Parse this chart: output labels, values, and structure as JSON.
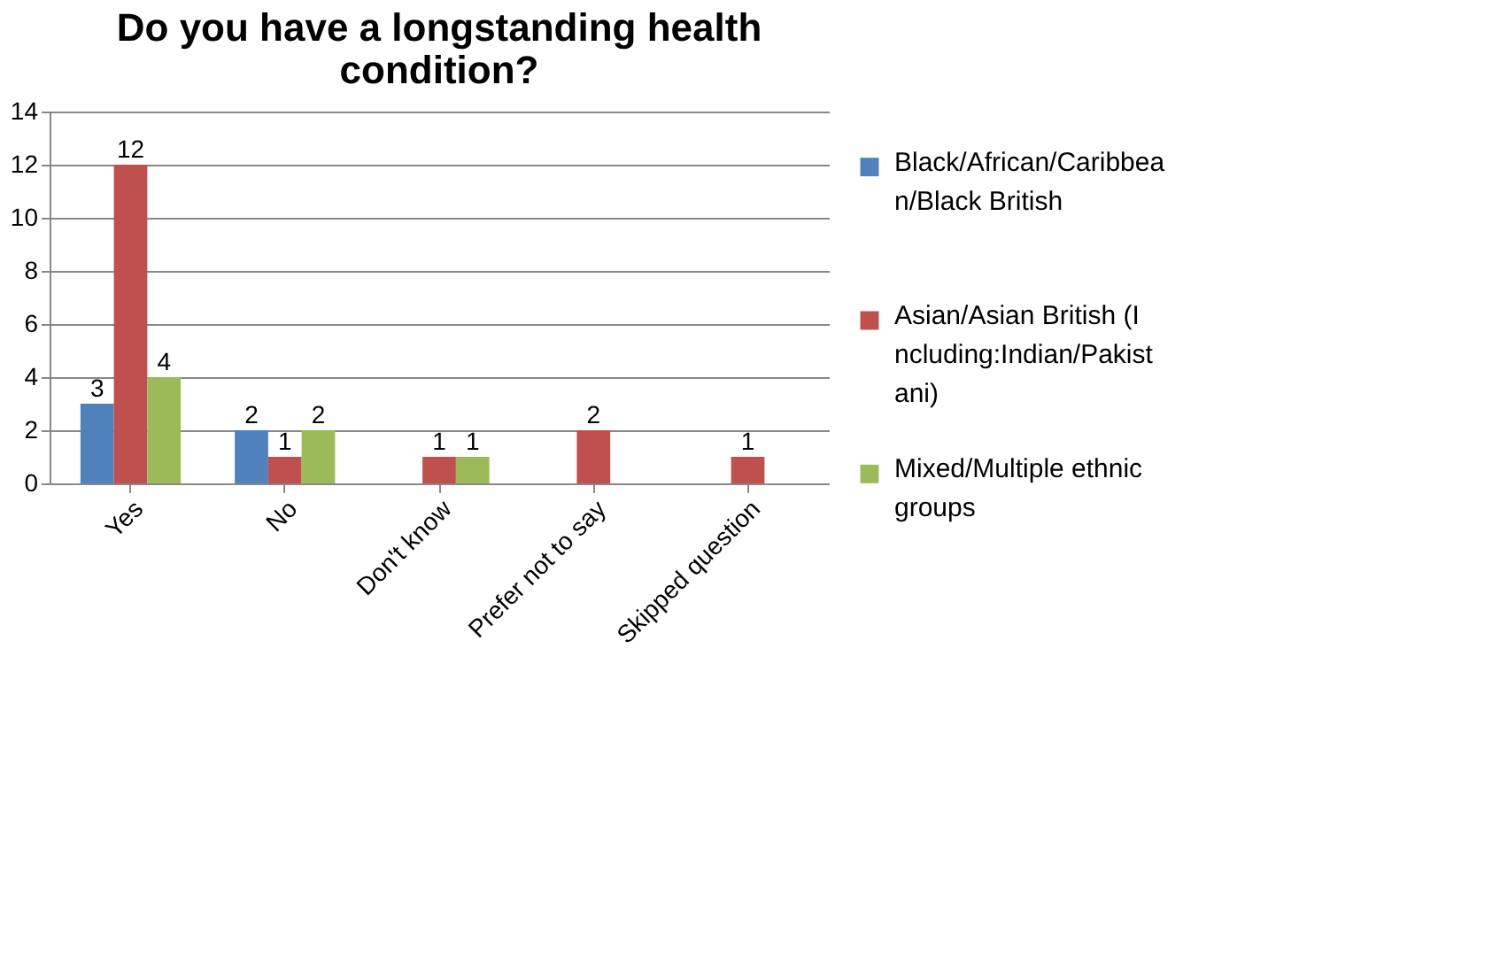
{
  "chart_data": {
    "type": "bar",
    "title": "Do you have a longstanding health condition?",
    "categories": [
      "Yes",
      "No",
      "Don't know",
      "Prefer not to say",
      "Skipped question"
    ],
    "series": [
      {
        "name": "Black/African/Caribbean/Black British",
        "color": "#4f81bd",
        "values": [
          3,
          2,
          null,
          null,
          null
        ]
      },
      {
        "name": "Asian/Asian British (Including:Indian/Pakistani)",
        "color": "#c0504d",
        "values": [
          12,
          1,
          1,
          2,
          1
        ]
      },
      {
        "name": "Mixed/Multiple ethnic groups",
        "color": "#9bbb59",
        "values": [
          4,
          2,
          1,
          null,
          null
        ]
      }
    ],
    "ylim": [
      0,
      14
    ],
    "yticks": [
      0,
      2,
      4,
      6,
      8,
      10,
      12,
      14
    ],
    "grid": "y",
    "data_labels": true,
    "legend": "right"
  }
}
